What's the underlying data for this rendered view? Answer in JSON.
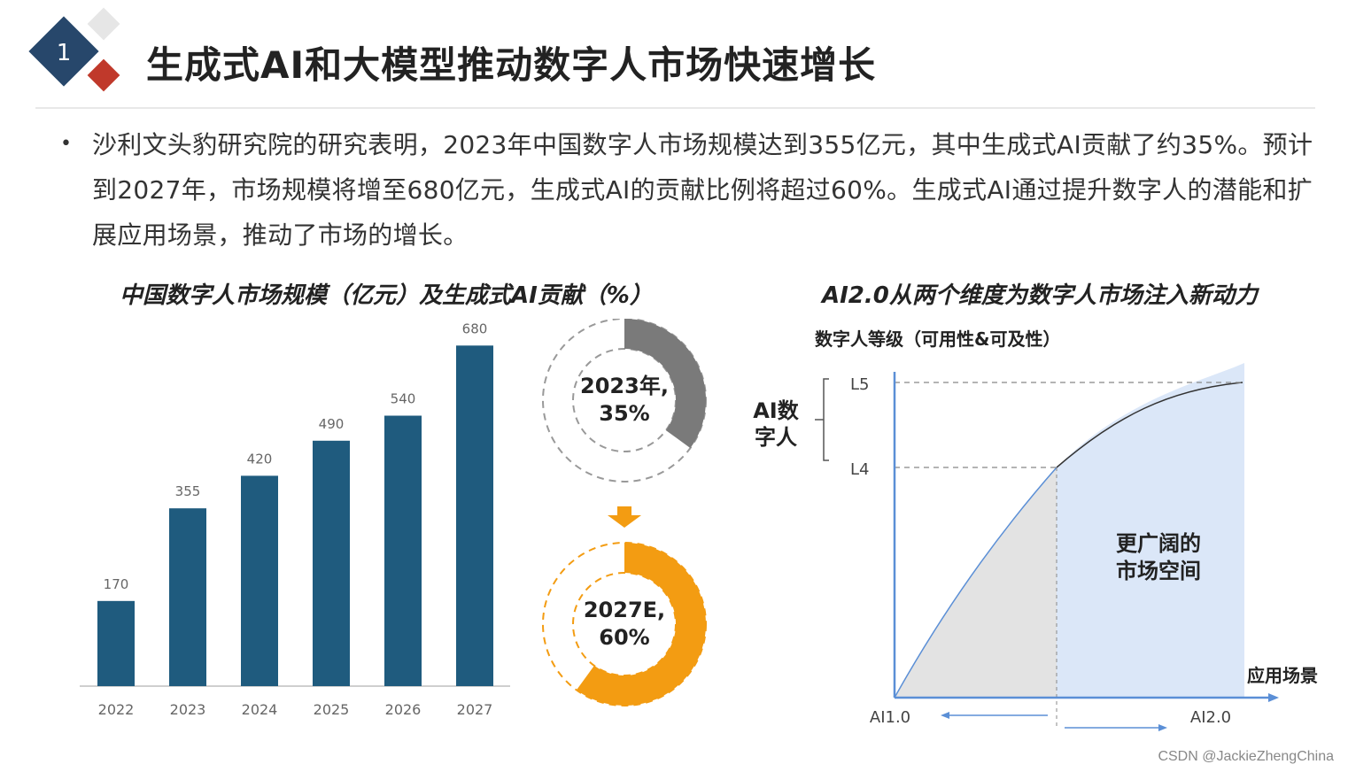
{
  "header": {
    "badge_number": "1",
    "title": "生成式AI和大模型推动数字人市场快速增长"
  },
  "bullet": {
    "dot": "•",
    "text": "沙利文头豹研究院的研究表明，2023年中国数字人市场规模达到355亿元，其中生成式AI贡献了约35%。预计到2027年，市场规模将增至680亿元，生成式AI的贡献比例将超过60%。生成式AI通过提升数字人的潜能和扩展应用场景，推动了市场的增长。"
  },
  "left_panel": {
    "title": "中国数字人市场规模（亿元）及生成式AI贡献（%）"
  },
  "right_panel": {
    "title": "AI2.0从两个维度为数字人市场注入新动力"
  },
  "colors": {
    "bar": "#1f5b7e",
    "donut_gray": "#7a7a7a",
    "donut_orange": "#f39c12",
    "arrow_orange": "#f39c12",
    "blue_area": "#dbe7f8",
    "gray_area": "#e3e3e3",
    "axis_blue": "#5b8fd6",
    "badge_blue": "#27476b",
    "badge_red": "#c0392b"
  },
  "chart_data": [
    {
      "type": "bar",
      "title": "中国数字人市场规模（亿元）及生成式AI贡献（%）",
      "categories": [
        "2022",
        "2023",
        "2024",
        "2025",
        "2026",
        "2027"
      ],
      "values": [
        170,
        355,
        420,
        490,
        540,
        680
      ],
      "value_labels": [
        "170",
        "355",
        "420",
        "490",
        "540",
        "680"
      ],
      "ylim": [
        0,
        700
      ]
    },
    {
      "type": "pie",
      "subtype": "donut",
      "label": "2023年，35%",
      "label_lines": [
        "2023年,",
        "35%"
      ],
      "value": 35
    },
    {
      "type": "pie",
      "subtype": "donut",
      "label": "2027E，60%",
      "label_lines": [
        "2027E,",
        "60%"
      ],
      "value": 60
    },
    {
      "type": "area",
      "title": "AI2.0从两个维度为数字人市场注入新动力",
      "ylabel": "数字人等级（可用性&可及性）",
      "xlabel": "应用场景",
      "y_ticks": [
        "L4",
        "L5"
      ],
      "x_ticks": [
        "AI1.0",
        "AI2.0"
      ],
      "bracket_label_lines": [
        "AI数",
        "字人"
      ],
      "area_label_lines": [
        "更广阔的",
        "市场空间"
      ]
    }
  ],
  "watermark": "CSDN @JackieZhengChina"
}
